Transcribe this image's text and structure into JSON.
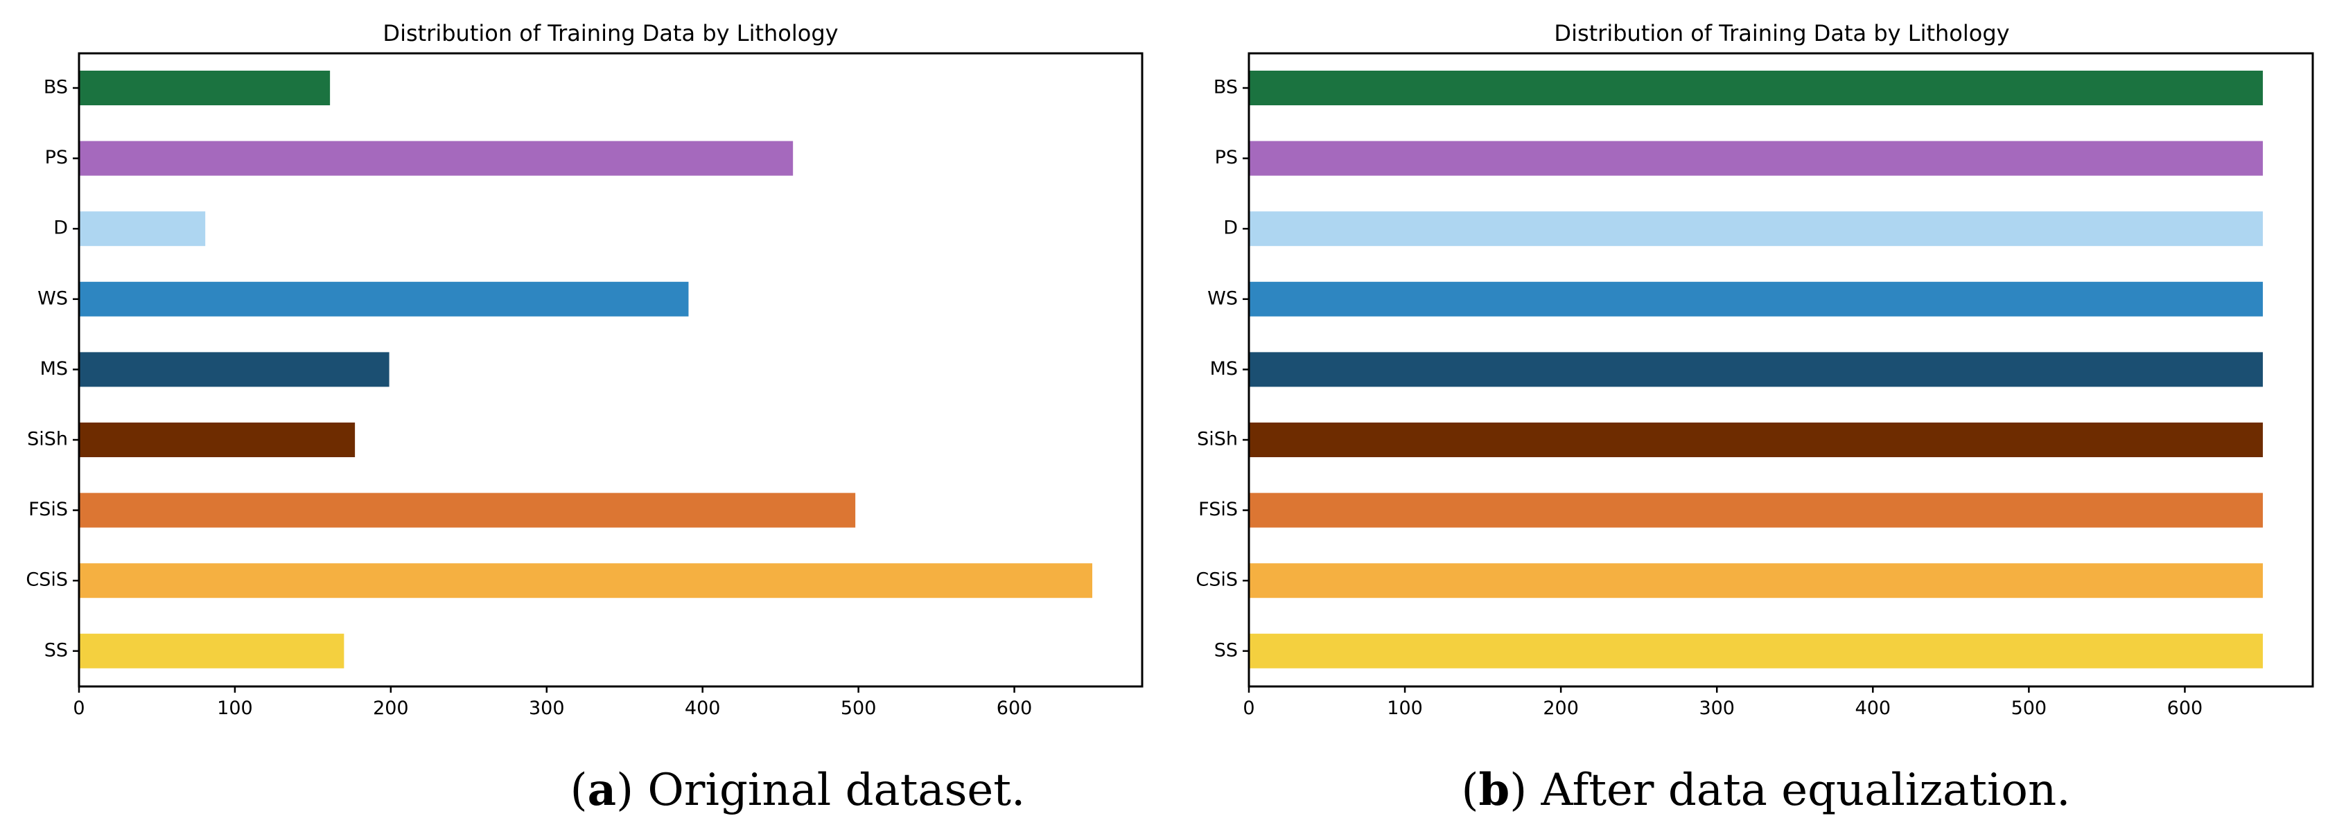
{
  "chart_data": [
    {
      "type": "bar",
      "orientation": "horizontal",
      "title": "Distribution of Training Data by Lithology",
      "xlabel": "",
      "ylabel": "",
      "categories": [
        "BS",
        "PS",
        "D",
        "WS",
        "MS",
        "SiSh",
        "FSiS",
        "CSiS",
        "SS"
      ],
      "values": [
        161,
        458,
        81,
        391,
        199,
        177,
        498,
        650,
        170
      ],
      "colors": [
        "#1b7340",
        "#a569bd",
        "#aed6f1",
        "#2e86c1",
        "#1b4f72",
        "#6e2c00",
        "#dc7633",
        "#f5b041",
        "#f4d03f"
      ],
      "xlim": [
        0,
        682
      ],
      "xticks": [
        0,
        100,
        200,
        300,
        400,
        500,
        600
      ],
      "grid": false,
      "caption": {
        "letter": "a",
        "text": "Original dataset."
      }
    },
    {
      "type": "bar",
      "orientation": "horizontal",
      "title": "Distribution of Training Data by Lithology",
      "xlabel": "",
      "ylabel": "",
      "categories": [
        "BS",
        "PS",
        "D",
        "WS",
        "MS",
        "SiSh",
        "FSiS",
        "CSiS",
        "SS"
      ],
      "values": [
        650,
        650,
        650,
        650,
        650,
        650,
        650,
        650,
        650
      ],
      "colors": [
        "#1b7340",
        "#a569bd",
        "#aed6f1",
        "#2e86c1",
        "#1b4f72",
        "#6e2c00",
        "#dc7633",
        "#f5b041",
        "#f4d03f"
      ],
      "xlim": [
        0,
        682
      ],
      "xticks": [
        0,
        100,
        200,
        300,
        400,
        500,
        600
      ],
      "grid": false,
      "caption": {
        "letter": "b",
        "text": "After data equalization."
      }
    }
  ]
}
